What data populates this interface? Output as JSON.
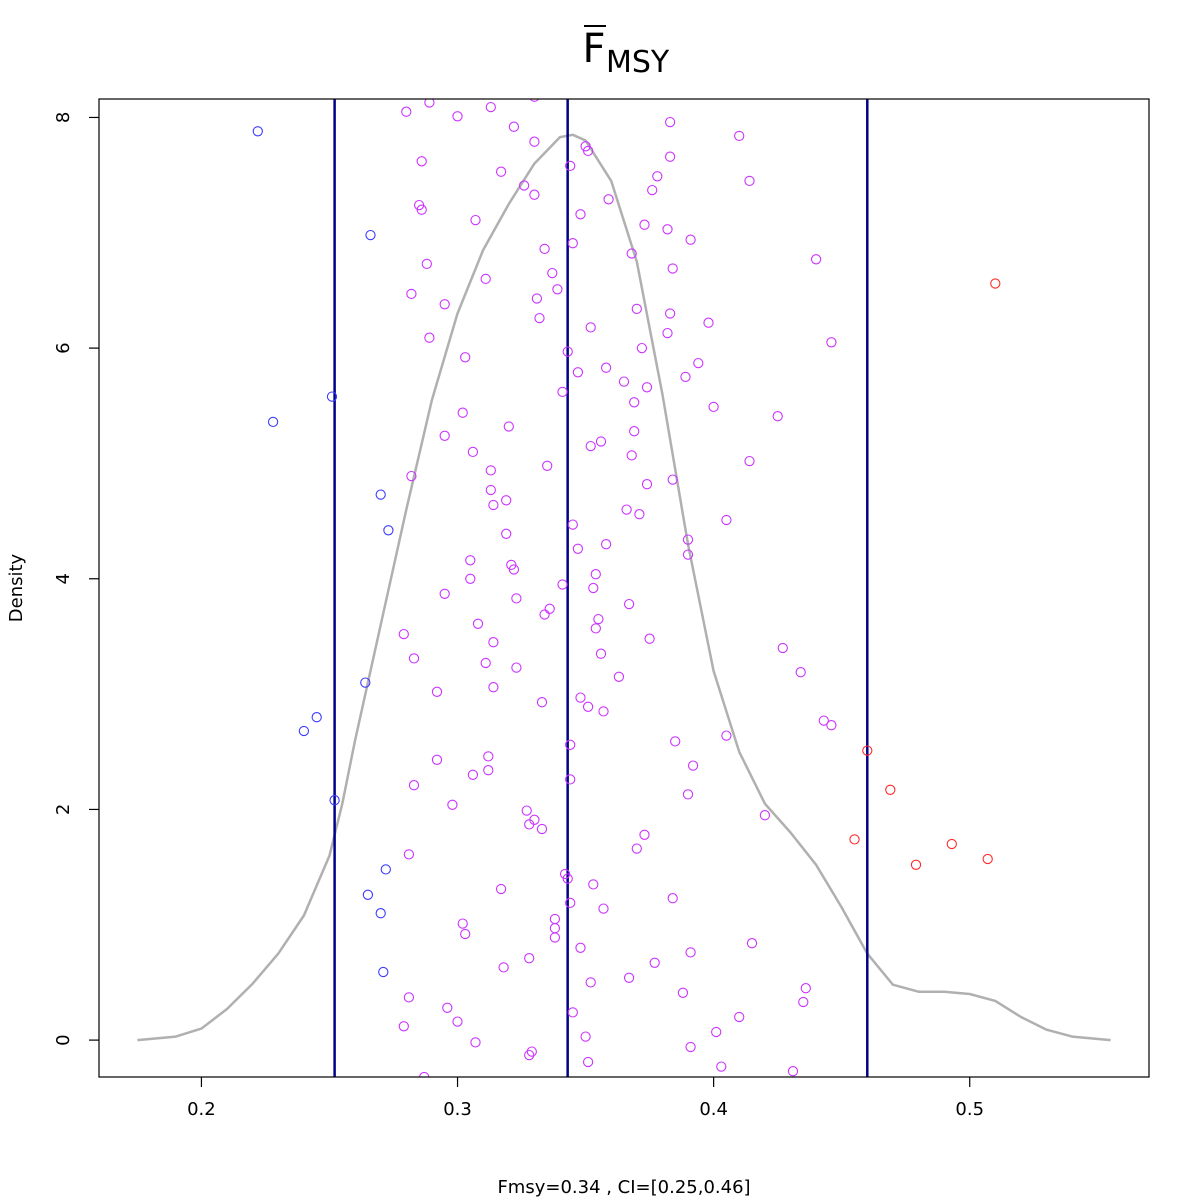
{
  "chart_data": {
    "type": "scatter",
    "title": "F",
    "title_subscript": "MSY",
    "title_overline": true,
    "xlabel": "Fmsy=0.34 , CI=[0.25,0.46]",
    "ylabel": "Density",
    "xlim": [
      0.16,
      0.57
    ],
    "ylim": [
      -0.32,
      8.16
    ],
    "x_ticks": [
      0.2,
      0.3,
      0.4,
      0.5
    ],
    "x_tick_labels": [
      "0.2",
      "0.3",
      "0.4",
      "0.5"
    ],
    "y_ticks": [
      0,
      2,
      4,
      6,
      8
    ],
    "y_tick_labels": [
      "0",
      "2",
      "4",
      "6",
      "8"
    ],
    "grid": false,
    "colors": {
      "density_curve": "#b0b0b0",
      "vertical_lines": "#00008b",
      "low_points": "#3b3bff",
      "mid_points": "#cc33ff",
      "high_points": "#ff2a2a"
    },
    "vertical_lines": [
      {
        "name": "ci_lower",
        "x": 0.252
      },
      {
        "name": "estimate",
        "x": 0.343
      },
      {
        "name": "ci_upper",
        "x": 0.46
      }
    ],
    "density_curve": {
      "x": [
        0.175,
        0.19,
        0.2,
        0.21,
        0.22,
        0.23,
        0.24,
        0.25,
        0.255,
        0.26,
        0.27,
        0.28,
        0.29,
        0.3,
        0.31,
        0.32,
        0.33,
        0.34,
        0.345,
        0.35,
        0.36,
        0.37,
        0.38,
        0.39,
        0.4,
        0.41,
        0.42,
        0.43,
        0.44,
        0.45,
        0.46,
        0.47,
        0.48,
        0.49,
        0.5,
        0.51,
        0.52,
        0.53,
        0.54,
        0.555
      ],
      "y": [
        0.0,
        0.03,
        0.1,
        0.27,
        0.49,
        0.75,
        1.08,
        1.6,
        2.05,
        2.6,
        3.6,
        4.6,
        5.55,
        6.3,
        6.85,
        7.25,
        7.6,
        7.83,
        7.85,
        7.8,
        7.45,
        6.75,
        5.6,
        4.3,
        3.2,
        2.5,
        2.05,
        1.8,
        1.52,
        1.15,
        0.75,
        0.48,
        0.42,
        0.42,
        0.4,
        0.34,
        0.2,
        0.09,
        0.03,
        0.0
      ]
    },
    "series": [
      {
        "color_key": "low_points",
        "points": [
          [
            0.222,
            7.88
          ],
          [
            0.228,
            5.36
          ],
          [
            0.24,
            2.68
          ],
          [
            0.245,
            2.8
          ],
          [
            0.251,
            5.58
          ],
          [
            0.252,
            2.08
          ],
          [
            0.264,
            3.1
          ],
          [
            0.265,
            1.26
          ],
          [
            0.266,
            6.98
          ],
          [
            0.27,
            4.73
          ],
          [
            0.27,
            1.1
          ],
          [
            0.271,
            0.59
          ],
          [
            0.272,
            1.48
          ],
          [
            0.273,
            4.42
          ]
        ]
      },
      {
        "color_key": "mid_points",
        "points": [
          [
            0.279,
            3.52
          ],
          [
            0.279,
            0.12
          ],
          [
            0.28,
            8.05
          ],
          [
            0.281,
            0.37
          ],
          [
            0.281,
            1.61
          ],
          [
            0.282,
            6.47
          ],
          [
            0.282,
            4.89
          ],
          [
            0.283,
            3.31
          ],
          [
            0.283,
            2.21
          ],
          [
            0.285,
            7.24
          ],
          [
            0.286,
            7.2
          ],
          [
            0.286,
            7.62
          ],
          [
            0.287,
            -0.32
          ],
          [
            0.288,
            6.73
          ],
          [
            0.289,
            6.09
          ],
          [
            0.289,
            8.13
          ],
          [
            0.292,
            2.43
          ],
          [
            0.292,
            3.02
          ],
          [
            0.295,
            6.38
          ],
          [
            0.295,
            5.24
          ],
          [
            0.295,
            3.87
          ],
          [
            0.296,
            0.28
          ],
          [
            0.298,
            2.04
          ],
          [
            0.3,
            0.16
          ],
          [
            0.3,
            8.01
          ],
          [
            0.302,
            1.01
          ],
          [
            0.302,
            5.44
          ],
          [
            0.303,
            0.92
          ],
          [
            0.303,
            5.92
          ],
          [
            0.305,
            4.16
          ],
          [
            0.305,
            4.0
          ],
          [
            0.306,
            5.1
          ],
          [
            0.306,
            2.3
          ],
          [
            0.307,
            7.11
          ],
          [
            0.307,
            -0.02
          ],
          [
            0.308,
            3.61
          ],
          [
            0.311,
            6.6
          ],
          [
            0.311,
            3.27
          ],
          [
            0.312,
            2.46
          ],
          [
            0.312,
            2.34
          ],
          [
            0.313,
            4.94
          ],
          [
            0.313,
            4.77
          ],
          [
            0.313,
            8.09
          ],
          [
            0.314,
            4.64
          ],
          [
            0.314,
            3.45
          ],
          [
            0.314,
            3.06
          ],
          [
            0.317,
            7.53
          ],
          [
            0.317,
            1.31
          ],
          [
            0.318,
            0.63
          ],
          [
            0.319,
            4.39
          ],
          [
            0.319,
            4.68
          ],
          [
            0.32,
            5.32
          ],
          [
            0.321,
            4.12
          ],
          [
            0.322,
            7.92
          ],
          [
            0.322,
            4.08
          ],
          [
            0.323,
            3.83
          ],
          [
            0.323,
            3.23
          ],
          [
            0.326,
            7.41
          ],
          [
            0.327,
            1.99
          ],
          [
            0.328,
            1.87
          ],
          [
            0.328,
            0.71
          ],
          [
            0.328,
            -0.13
          ],
          [
            0.329,
            -0.1
          ],
          [
            0.33,
            8.18
          ],
          [
            0.33,
            7.79
          ],
          [
            0.33,
            7.33
          ],
          [
            0.33,
            1.91
          ],
          [
            0.331,
            6.43
          ],
          [
            0.332,
            6.26
          ],
          [
            0.333,
            1.83
          ],
          [
            0.333,
            2.93
          ],
          [
            0.334,
            6.86
          ],
          [
            0.334,
            3.69
          ],
          [
            0.335,
            4.98
          ],
          [
            0.336,
            3.74
          ],
          [
            0.337,
            6.65
          ],
          [
            0.338,
            1.05
          ],
          [
            0.338,
            0.97
          ],
          [
            0.338,
            0.89
          ],
          [
            0.339,
            6.51
          ],
          [
            0.341,
            5.62
          ],
          [
            0.341,
            3.95
          ],
          [
            0.342,
            1.44
          ],
          [
            0.343,
            5.97
          ],
          [
            0.343,
            1.4
          ],
          [
            0.344,
            7.58
          ],
          [
            0.344,
            2.26
          ],
          [
            0.344,
            2.56
          ],
          [
            0.344,
            1.19
          ],
          [
            0.345,
            6.91
          ],
          [
            0.345,
            4.47
          ],
          [
            0.345,
            0.24
          ],
          [
            0.347,
            5.79
          ],
          [
            0.347,
            4.26
          ],
          [
            0.348,
            2.97
          ],
          [
            0.348,
            0.8
          ],
          [
            0.348,
            7.16
          ],
          [
            0.35,
            7.75
          ],
          [
            0.35,
            0.03
          ],
          [
            0.351,
            7.71
          ],
          [
            0.351,
            2.89
          ],
          [
            0.351,
            -0.19
          ],
          [
            0.352,
            6.18
          ],
          [
            0.352,
            5.15
          ],
          [
            0.352,
            0.5
          ],
          [
            0.353,
            3.92
          ],
          [
            0.353,
            1.35
          ],
          [
            0.354,
            3.57
          ],
          [
            0.354,
            4.04
          ],
          [
            0.355,
            3.65
          ],
          [
            0.356,
            3.35
          ],
          [
            0.356,
            5.19
          ],
          [
            0.357,
            2.85
          ],
          [
            0.357,
            1.14
          ],
          [
            0.358,
            5.83
          ],
          [
            0.358,
            4.3
          ],
          [
            0.359,
            7.29
          ],
          [
            0.363,
            3.15
          ],
          [
            0.365,
            5.71
          ],
          [
            0.366,
            4.6
          ],
          [
            0.367,
            3.78
          ],
          [
            0.367,
            0.54
          ],
          [
            0.368,
            6.82
          ],
          [
            0.368,
            5.07
          ],
          [
            0.369,
            5.53
          ],
          [
            0.369,
            5.28
          ],
          [
            0.37,
            6.34
          ],
          [
            0.37,
            1.66
          ],
          [
            0.371,
            4.56
          ],
          [
            0.372,
            6.0
          ],
          [
            0.373,
            7.07
          ],
          [
            0.373,
            1.78
          ],
          [
            0.374,
            5.66
          ],
          [
            0.374,
            4.82
          ],
          [
            0.375,
            3.48
          ],
          [
            0.376,
            7.37
          ],
          [
            0.377,
            0.67
          ],
          [
            0.378,
            7.49
          ],
          [
            0.382,
            7.03
          ],
          [
            0.382,
            6.13
          ],
          [
            0.383,
            7.96
          ],
          [
            0.383,
            7.66
          ],
          [
            0.383,
            6.3
          ],
          [
            0.384,
            6.69
          ],
          [
            0.384,
            4.86
          ],
          [
            0.384,
            1.23
          ],
          [
            0.385,
            2.59
          ],
          [
            0.388,
            0.41
          ],
          [
            0.389,
            5.75
          ],
          [
            0.39,
            4.34
          ],
          [
            0.39,
            4.21
          ],
          [
            0.39,
            2.13
          ],
          [
            0.391,
            6.94
          ],
          [
            0.391,
            0.76
          ],
          [
            0.391,
            -0.06
          ],
          [
            0.392,
            2.38
          ],
          [
            0.394,
            5.87
          ],
          [
            0.398,
            6.22
          ],
          [
            0.4,
            5.49
          ],
          [
            0.401,
            0.07
          ],
          [
            0.403,
            -0.23
          ],
          [
            0.405,
            4.51
          ],
          [
            0.405,
            2.64
          ],
          [
            0.41,
            7.84
          ],
          [
            0.41,
            0.2
          ],
          [
            0.414,
            7.45
          ],
          [
            0.414,
            5.02
          ],
          [
            0.415,
            0.84
          ],
          [
            0.42,
            1.95
          ],
          [
            0.425,
            5.41
          ],
          [
            0.427,
            3.4
          ],
          [
            0.431,
            -0.27
          ],
          [
            0.434,
            3.19
          ],
          [
            0.435,
            0.33
          ],
          [
            0.436,
            0.45
          ],
          [
            0.44,
            6.77
          ],
          [
            0.443,
            2.77
          ],
          [
            0.446,
            6.05
          ],
          [
            0.446,
            2.73
          ]
        ]
      },
      {
        "color_key": "high_points",
        "points": [
          [
            0.455,
            1.74
          ],
          [
            0.46,
            2.51
          ],
          [
            0.469,
            2.17
          ],
          [
            0.479,
            1.52
          ],
          [
            0.493,
            1.7
          ],
          [
            0.507,
            1.57
          ],
          [
            0.51,
            6.56
          ]
        ]
      }
    ]
  }
}
